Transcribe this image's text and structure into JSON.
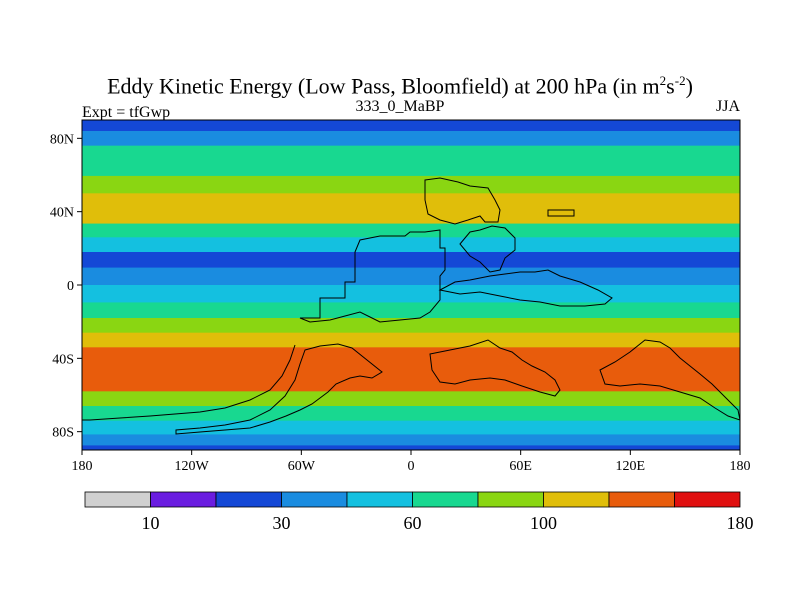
{
  "figure": {
    "title_main": "Eddy Kinetic Energy (Low Pass, Bloomfield) at 200 hPa (in m",
    "title_sup1": "2",
    "title_mid": "s",
    "title_sup2": "-2",
    "title_end": ")",
    "left_label": "Expt = tfGwp",
    "center_label": "333_0_MaBP",
    "right_label": "JJA"
  },
  "chart_data": {
    "type": "heatmap",
    "title": "Eddy Kinetic Energy (Low Pass, Bloomfield) at 200 hPa (in m2s-2)",
    "x_ticks": [
      "180",
      "120W",
      "60W",
      "0",
      "60E",
      "120E",
      "180"
    ],
    "y_ticks": [
      "80N",
      "40N",
      "0",
      "40S",
      "80S"
    ],
    "xlim": [
      -180,
      180
    ],
    "ylim": [
      -90,
      90
    ],
    "colorbar": {
      "levels": [
        10,
        20,
        30,
        45,
        60,
        80,
        100,
        120,
        150,
        180
      ],
      "labels": [
        "10",
        "30",
        "60",
        "100",
        "180"
      ],
      "colors": [
        "#d0d0d0",
        "#6a1de0",
        "#1448d6",
        "#1a8ce0",
        "#14c0e0",
        "#18d890",
        "#8ad612",
        "#e0be0a",
        "#e85c0c",
        "#e01010"
      ]
    },
    "latitude_profile": [
      {
        "lat": 88,
        "value": 25
      },
      {
        "lat": 80,
        "value": 40
      },
      {
        "lat": 72,
        "value": 60
      },
      {
        "lat": 64,
        "value": 75
      },
      {
        "lat": 55,
        "value": 95
      },
      {
        "lat": 45,
        "value": 110
      },
      {
        "lat": 37,
        "value": 100
      },
      {
        "lat": 30,
        "value": 75
      },
      {
        "lat": 22,
        "value": 45
      },
      {
        "lat": 14,
        "value": 25
      },
      {
        "lat": 5,
        "value": 30
      },
      {
        "lat": -5,
        "value": 45
      },
      {
        "lat": -14,
        "value": 60
      },
      {
        "lat": -22,
        "value": 85
      },
      {
        "lat": -30,
        "value": 110
      },
      {
        "lat": -38,
        "value": 130
      },
      {
        "lat": -46,
        "value": 140
      },
      {
        "lat": -54,
        "value": 120
      },
      {
        "lat": -62,
        "value": 95
      },
      {
        "lat": -70,
        "value": 70
      },
      {
        "lat": -78,
        "value": 45
      },
      {
        "lat": -85,
        "value": 30
      },
      {
        "lat": -90,
        "value": 20
      }
    ]
  }
}
